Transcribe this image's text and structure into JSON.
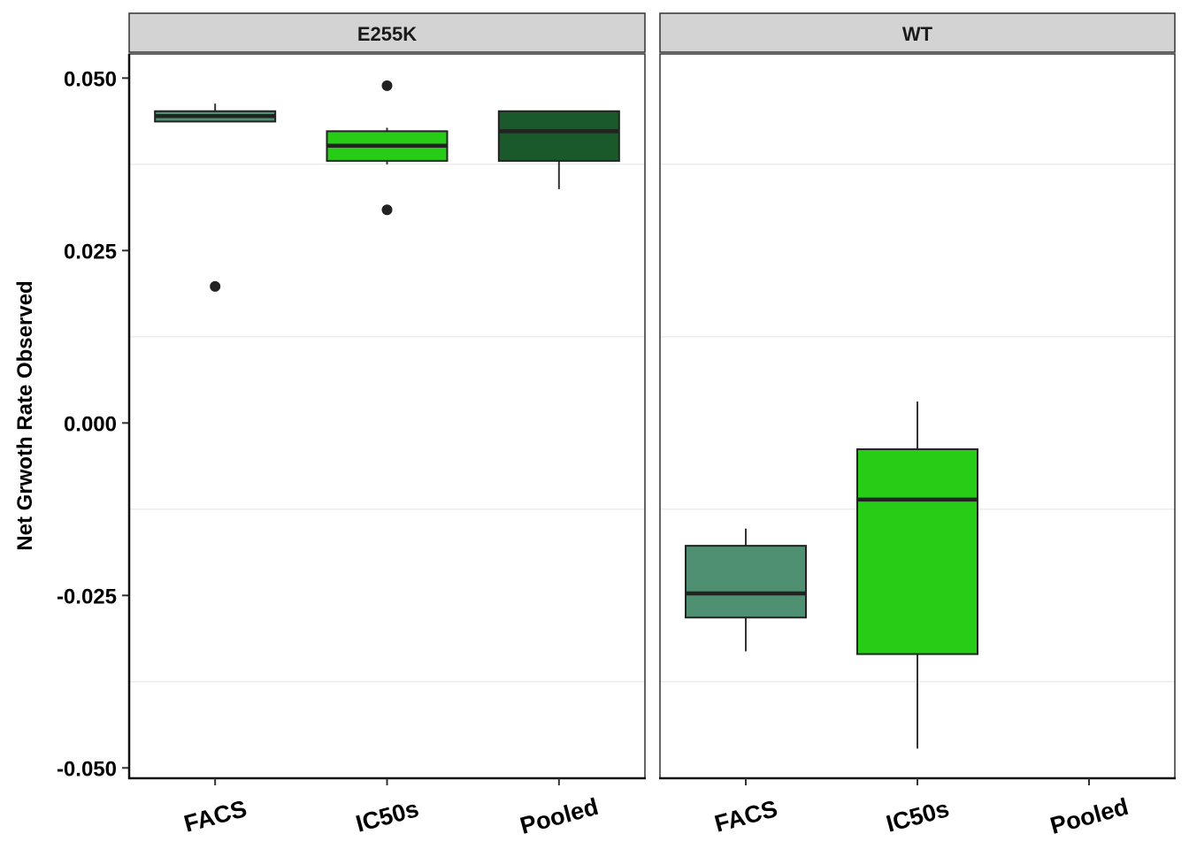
{
  "chart_data": {
    "type": "boxplot",
    "ylabel": "Net Grwoth Rate Observed",
    "xlabel": "",
    "ylim": [
      -0.0515,
      0.0535
    ],
    "yticks": [
      0.05,
      0.025,
      0.0,
      -0.025,
      -0.05
    ],
    "ytick_labels": [
      "0.050",
      "0.025",
      "0.000",
      "-0.025",
      "-0.050"
    ],
    "minor_gridlines": [
      0.0375,
      0.0125,
      -0.0125,
      -0.0375
    ],
    "categories": [
      "FACS",
      "IC50s",
      "Pooled"
    ],
    "category_colors": {
      "FACS": "#4f8f72",
      "IC50s": "#26cc15",
      "Pooled": "#1a5a2a"
    },
    "facets": [
      {
        "strip": "E255K",
        "boxes": [
          {
            "category": "FACS",
            "whisker_low": 0.0437,
            "q1": 0.0437,
            "median": 0.0445,
            "q3": 0.0452,
            "whisker_high": 0.0463,
            "outliers": [
              0.0198
            ]
          },
          {
            "category": "IC50s",
            "whisker_low": 0.0375,
            "q1": 0.038,
            "median": 0.0402,
            "q3": 0.0423,
            "whisker_high": 0.0428,
            "outliers": [
              0.0489,
              0.0309
            ]
          },
          {
            "category": "Pooled",
            "whisker_low": 0.0339,
            "q1": 0.038,
            "median": 0.0423,
            "q3": 0.0452,
            "whisker_high": 0.0452,
            "outliers": []
          }
        ]
      },
      {
        "strip": "WT",
        "boxes": [
          {
            "category": "FACS",
            "whisker_low": -0.0331,
            "q1": -0.0282,
            "median": -0.0247,
            "q3": -0.0178,
            "whisker_high": -0.0153,
            "outliers": []
          },
          {
            "category": "IC50s",
            "whisker_low": -0.0472,
            "q1": -0.0335,
            "median": -0.0111,
            "q3": -0.0038,
            "whisker_high": 0.0031,
            "outliers": []
          }
        ]
      }
    ],
    "grid": "minor-horizontal",
    "legend": "none"
  }
}
